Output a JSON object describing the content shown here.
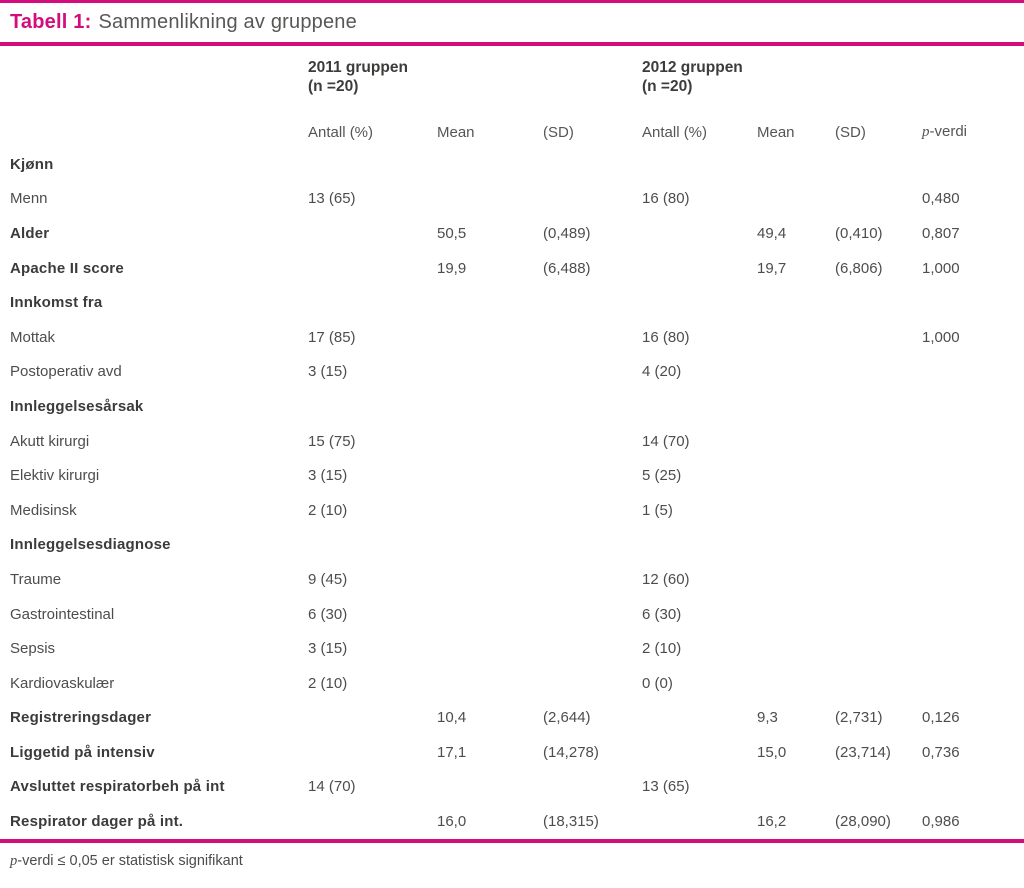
{
  "caption": {
    "label": "Tabell 1:",
    "title": "Sammenlikning av gruppene"
  },
  "colors": {
    "accent": "#d40d7d",
    "text": "#4d4d4c",
    "bold_text": "#3b3b3a"
  },
  "table": {
    "groups": [
      {
        "name": "2011 gruppen",
        "n": "(n =20)"
      },
      {
        "name": "2012 gruppen",
        "n": "(n =20)"
      }
    ],
    "columns": [
      "Antall (%)",
      "Mean",
      "(SD)",
      "Antall (%)",
      "Mean",
      "(SD)"
    ],
    "p_header": {
      "p": "p",
      "rest": "-verdi"
    },
    "rows": [
      {
        "label": "Kjønn",
        "bold": true,
        "cells": [
          "",
          "",
          "",
          "",
          "",
          "",
          ""
        ]
      },
      {
        "label": "Menn",
        "bold": false,
        "cells": [
          "13 (65)",
          "",
          "",
          "16 (80)",
          "",
          "",
          "0,480"
        ]
      },
      {
        "label": "Alder",
        "bold": true,
        "cells": [
          "",
          "50,5",
          "(0,489)",
          "",
          "49,4",
          "(0,410)",
          "0,807"
        ]
      },
      {
        "label": "Apache II score",
        "bold": true,
        "cells": [
          "",
          "19,9",
          "(6,488)",
          "",
          "19,7",
          "(6,806)",
          "1,000"
        ]
      },
      {
        "label": "Innkomst fra",
        "bold": true,
        "cells": [
          "",
          "",
          "",
          "",
          "",
          "",
          ""
        ]
      },
      {
        "label": "Mottak",
        "bold": false,
        "cells": [
          "17 (85)",
          "",
          "",
          "16 (80)",
          "",
          "",
          "1,000"
        ]
      },
      {
        "label": "Postoperativ avd",
        "bold": false,
        "cells": [
          "3 (15)",
          "",
          "",
          "4 (20)",
          "",
          "",
          ""
        ]
      },
      {
        "label": "Innleggelsesårsak",
        "bold": true,
        "cells": [
          "",
          "",
          "",
          "",
          "",
          "",
          ""
        ]
      },
      {
        "label": "Akutt kirurgi",
        "bold": false,
        "cells": [
          "15 (75)",
          "",
          "",
          "14 (70)",
          "",
          "",
          ""
        ]
      },
      {
        "label": "Elektiv kirurgi",
        "bold": false,
        "cells": [
          "3 (15)",
          "",
          "",
          "5 (25)",
          "",
          "",
          ""
        ]
      },
      {
        "label": "Medisinsk",
        "bold": false,
        "cells": [
          "2 (10)",
          "",
          "",
          "1 (5)",
          "",
          "",
          ""
        ]
      },
      {
        "label": "Innleggelsesdiagnose",
        "bold": true,
        "cells": [
          "",
          "",
          "",
          "",
          "",
          "",
          ""
        ]
      },
      {
        "label": "Traume",
        "bold": false,
        "cells": [
          "9 (45)",
          "",
          "",
          "12 (60)",
          "",
          "",
          ""
        ]
      },
      {
        "label": "Gastrointestinal",
        "bold": false,
        "cells": [
          "6 (30)",
          "",
          "",
          "6 (30)",
          "",
          "",
          ""
        ]
      },
      {
        "label": "Sepsis",
        "bold": false,
        "cells": [
          "3 (15)",
          "",
          "",
          "2 (10)",
          "",
          "",
          ""
        ]
      },
      {
        "label": "Kardiovaskulær",
        "bold": false,
        "cells": [
          "2 (10)",
          "",
          "",
          "0 (0)",
          "",
          "",
          ""
        ]
      },
      {
        "label": "Registreringsdager",
        "bold": true,
        "cells": [
          "",
          "10,4",
          "(2,644)",
          "",
          "9,3",
          "(2,731)",
          "0,126"
        ]
      },
      {
        "label": "Liggetid på intensiv",
        "bold": true,
        "cells": [
          "",
          "17,1",
          "(14,278)",
          "",
          "15,0",
          "(23,714)",
          "0,736"
        ]
      },
      {
        "label": "Avsluttet respiratorbeh på int",
        "bold": true,
        "cells": [
          "14 (70)",
          "",
          "",
          "13 (65)",
          "",
          "",
          ""
        ]
      },
      {
        "label": "Respirator dager på int.",
        "bold": true,
        "cells": [
          "",
          "16,0",
          "(18,315)",
          "",
          "16,2",
          "(28,090)",
          "0,986"
        ]
      }
    ]
  },
  "footnote": {
    "p": "p",
    "rest": "-verdi ≤ 0,05 er statistisk signifikant"
  }
}
